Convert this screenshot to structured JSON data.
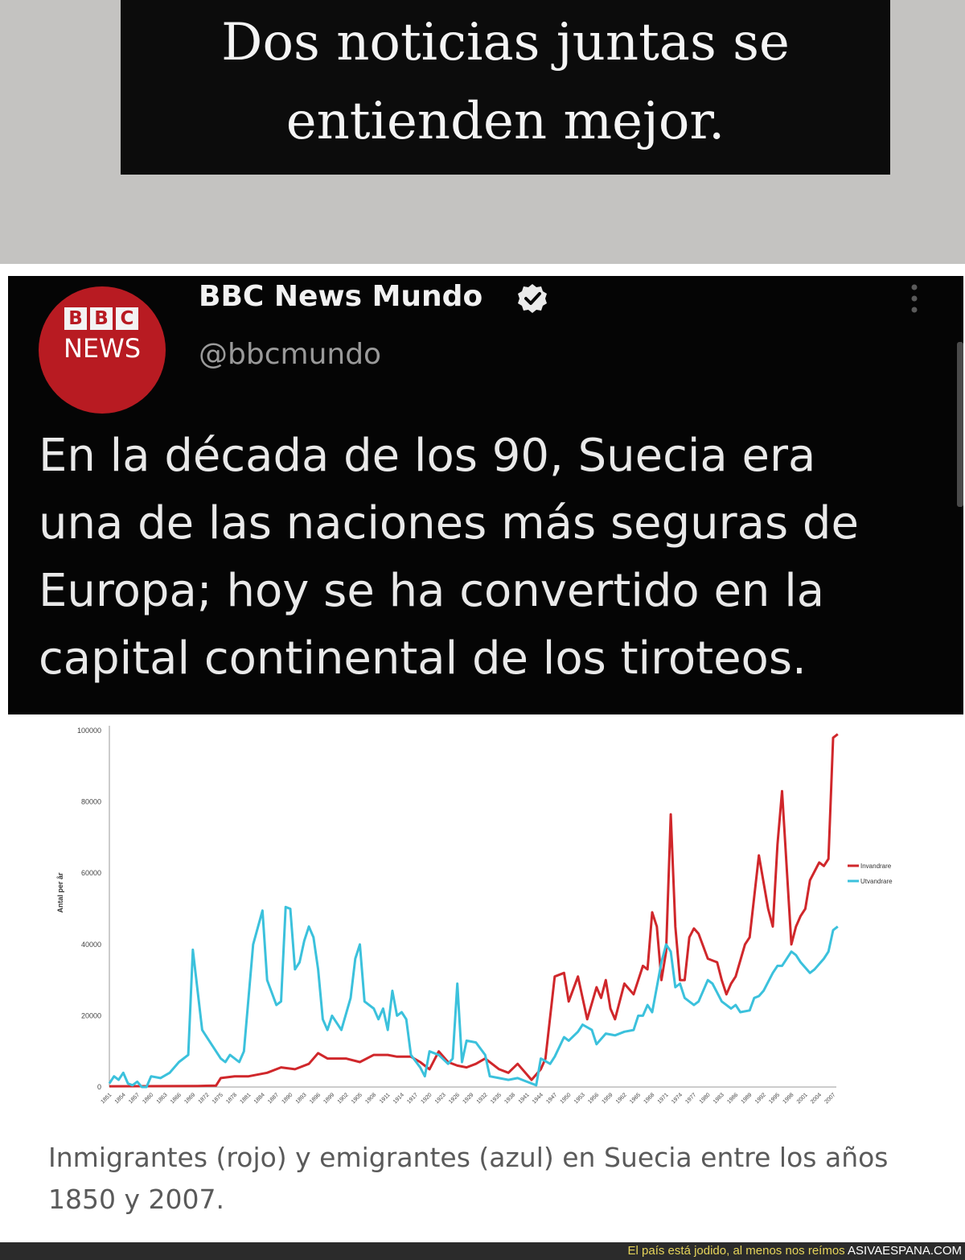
{
  "header": {
    "line1": "Dos noticias juntas se",
    "line2": "entienden mejor."
  },
  "tweet": {
    "avatar": {
      "bbc_letters": [
        "B",
        "B",
        "C"
      ],
      "news_text": "NEWS",
      "color": "#b81b22"
    },
    "account_name": "BBC News Mundo",
    "verified_icon": "verified-badge-icon",
    "handle": "@bbcmundo",
    "more_icon": "more-vertical-icon",
    "text_lines": [
      "En la década de los 90, Suecia era",
      "una de las naciones más seguras de",
      "Europa; hoy se ha convertido en la",
      "capital continental de los tiroteos."
    ]
  },
  "chart_data": {
    "type": "line",
    "title": "",
    "xlabel": "",
    "ylabel": "Antal per år",
    "xlim": [
      1851,
      2007
    ],
    "ylim": [
      0,
      100000
    ],
    "yticks": [
      0,
      20000,
      40000,
      60000,
      80000,
      100000
    ],
    "xticks": [
      1851,
      1854,
      1857,
      1860,
      1863,
      1866,
      1869,
      1872,
      1875,
      1878,
      1881,
      1884,
      1887,
      1890,
      1893,
      1896,
      1899,
      1902,
      1905,
      1908,
      1911,
      1914,
      1917,
      1920,
      1923,
      1926,
      1929,
      1932,
      1935,
      1938,
      1941,
      1944,
      1947,
      1950,
      1953,
      1956,
      1959,
      1962,
      1965,
      1968,
      1971,
      1974,
      1977,
      1980,
      1983,
      1986,
      1989,
      1992,
      1995,
      1998,
      2001,
      2004,
      2007
    ],
    "legend_position": "right",
    "grid": false,
    "series": [
      {
        "name": "Invandrare",
        "color": "#d0272b",
        "points": [
          [
            1851,
            200
          ],
          [
            1870,
            300
          ],
          [
            1874,
            400
          ],
          [
            1875,
            2500
          ],
          [
            1878,
            3000
          ],
          [
            1881,
            3000
          ],
          [
            1885,
            4000
          ],
          [
            1888,
            5500
          ],
          [
            1891,
            5000
          ],
          [
            1894,
            6500
          ],
          [
            1896,
            9500
          ],
          [
            1898,
            8000
          ],
          [
            1902,
            8000
          ],
          [
            1905,
            7000
          ],
          [
            1908,
            9000
          ],
          [
            1911,
            9000
          ],
          [
            1913,
            8500
          ],
          [
            1916,
            8500
          ],
          [
            1918,
            7000
          ],
          [
            1920,
            5000
          ],
          [
            1922,
            10000
          ],
          [
            1924,
            7000
          ],
          [
            1926,
            6000
          ],
          [
            1928,
            5500
          ],
          [
            1930,
            6500
          ],
          [
            1932,
            8000
          ],
          [
            1935,
            5000
          ],
          [
            1937,
            4000
          ],
          [
            1939,
            6500
          ],
          [
            1942,
            2000
          ],
          [
            1944,
            5000
          ],
          [
            1945,
            8000
          ],
          [
            1947,
            31000
          ],
          [
            1949,
            32000
          ],
          [
            1950,
            24000
          ],
          [
            1952,
            31000
          ],
          [
            1954,
            19000
          ],
          [
            1956,
            28000
          ],
          [
            1957,
            25000
          ],
          [
            1958,
            30000
          ],
          [
            1959,
            22000
          ],
          [
            1960,
            19000
          ],
          [
            1962,
            29000
          ],
          [
            1964,
            26000
          ],
          [
            1966,
            34000
          ],
          [
            1967,
            33000
          ],
          [
            1968,
            49000
          ],
          [
            1969,
            45000
          ],
          [
            1970,
            30000
          ],
          [
            1971,
            38000
          ],
          [
            1972,
            76500
          ],
          [
            1973,
            45000
          ],
          [
            1974,
            30000
          ],
          [
            1975,
            30000
          ],
          [
            1976,
            42000
          ],
          [
            1977,
            44500
          ],
          [
            1978,
            43000
          ],
          [
            1980,
            36000
          ],
          [
            1982,
            35000
          ],
          [
            1983,
            30000
          ],
          [
            1984,
            26000
          ],
          [
            1985,
            29000
          ],
          [
            1986,
            31000
          ],
          [
            1988,
            40000
          ],
          [
            1989,
            42000
          ],
          [
            1991,
            65000
          ],
          [
            1993,
            50000
          ],
          [
            1994,
            45000
          ],
          [
            1995,
            68000
          ],
          [
            1996,
            83000
          ],
          [
            1998,
            40000
          ],
          [
            1999,
            45000
          ],
          [
            2000,
            48000
          ],
          [
            2001,
            50000
          ],
          [
            2002,
            58000
          ],
          [
            2004,
            63000
          ],
          [
            2005,
            62000
          ],
          [
            2006,
            64000
          ],
          [
            2007,
            98000
          ],
          [
            2008,
            99000
          ]
        ]
      },
      {
        "name": "Utvandrare",
        "color": "#3bc1dc",
        "points": [
          [
            1851,
            1000
          ],
          [
            1852,
            3000
          ],
          [
            1853,
            2000
          ],
          [
            1854,
            4000
          ],
          [
            1855,
            1000
          ],
          [
            1856,
            500
          ],
          [
            1857,
            1500
          ],
          [
            1858,
            0
          ],
          [
            1859,
            0
          ],
          [
            1860,
            3000
          ],
          [
            1862,
            2500
          ],
          [
            1864,
            4000
          ],
          [
            1866,
            7000
          ],
          [
            1868,
            9000
          ],
          [
            1869,
            38500
          ],
          [
            1871,
            16000
          ],
          [
            1873,
            12000
          ],
          [
            1875,
            8000
          ],
          [
            1876,
            7000
          ],
          [
            1877,
            9000
          ],
          [
            1879,
            7000
          ],
          [
            1880,
            10000
          ],
          [
            1882,
            40000
          ],
          [
            1884,
            49500
          ],
          [
            1885,
            30000
          ],
          [
            1887,
            23000
          ],
          [
            1888,
            24000
          ],
          [
            1889,
            50500
          ],
          [
            1890,
            50000
          ],
          [
            1891,
            33000
          ],
          [
            1892,
            35000
          ],
          [
            1893,
            41000
          ],
          [
            1894,
            45000
          ],
          [
            1895,
            42000
          ],
          [
            1896,
            33000
          ],
          [
            1897,
            19000
          ],
          [
            1898,
            16000
          ],
          [
            1899,
            20000
          ],
          [
            1901,
            16000
          ],
          [
            1903,
            25000
          ],
          [
            1904,
            36000
          ],
          [
            1905,
            40000
          ],
          [
            1906,
            24000
          ],
          [
            1908,
            22000
          ],
          [
            1909,
            19000
          ],
          [
            1910,
            22000
          ],
          [
            1911,
            16000
          ],
          [
            1912,
            27000
          ],
          [
            1913,
            20000
          ],
          [
            1914,
            21000
          ],
          [
            1915,
            19000
          ],
          [
            1916,
            9000
          ],
          [
            1918,
            5500
          ],
          [
            1919,
            3000
          ],
          [
            1920,
            10000
          ],
          [
            1922,
            9000
          ],
          [
            1924,
            6500
          ],
          [
            1925,
            8000
          ],
          [
            1926,
            29000
          ],
          [
            1927,
            7000
          ],
          [
            1928,
            13000
          ],
          [
            1930,
            12500
          ],
          [
            1932,
            9000
          ],
          [
            1933,
            3000
          ],
          [
            1935,
            2500
          ],
          [
            1937,
            2000
          ],
          [
            1939,
            2500
          ],
          [
            1941,
            1500
          ],
          [
            1943,
            500
          ],
          [
            1944,
            8000
          ],
          [
            1946,
            6500
          ],
          [
            1947,
            8500
          ],
          [
            1949,
            14000
          ],
          [
            1950,
            13000
          ],
          [
            1952,
            15500
          ],
          [
            1953,
            17500
          ],
          [
            1955,
            16000
          ],
          [
            1956,
            12000
          ],
          [
            1958,
            15000
          ],
          [
            1960,
            14500
          ],
          [
            1962,
            15500
          ],
          [
            1964,
            16000
          ],
          [
            1965,
            20000
          ],
          [
            1966,
            20000
          ],
          [
            1967,
            23000
          ],
          [
            1968,
            21000
          ],
          [
            1970,
            35000
          ],
          [
            1971,
            40000
          ],
          [
            1972,
            38000
          ],
          [
            1973,
            28000
          ],
          [
            1974,
            29000
          ],
          [
            1975,
            25000
          ],
          [
            1977,
            23000
          ],
          [
            1978,
            24000
          ],
          [
            1980,
            30000
          ],
          [
            1981,
            29000
          ],
          [
            1983,
            24000
          ],
          [
            1984,
            23000
          ],
          [
            1985,
            22000
          ],
          [
            1986,
            23000
          ],
          [
            1987,
            21000
          ],
          [
            1989,
            21500
          ],
          [
            1990,
            25000
          ],
          [
            1991,
            25500
          ],
          [
            1992,
            27000
          ],
          [
            1994,
            32000
          ],
          [
            1995,
            34000
          ],
          [
            1996,
            34000
          ],
          [
            1998,
            38000
          ],
          [
            1999,
            37000
          ],
          [
            2000,
            35000
          ],
          [
            2002,
            32000
          ],
          [
            2003,
            33000
          ],
          [
            2005,
            36000
          ],
          [
            2006,
            38000
          ],
          [
            2007,
            44000
          ],
          [
            2008,
            45000
          ]
        ]
      }
    ]
  },
  "chart_caption": "Inmigrantes (rojo) y emigrantes (azul) en Suecia entre los años 1850 y 2007.",
  "footer": {
    "tagline": "El país está jodido, al menos nos reímos",
    "site": "ASIVAESPANA.COM"
  }
}
